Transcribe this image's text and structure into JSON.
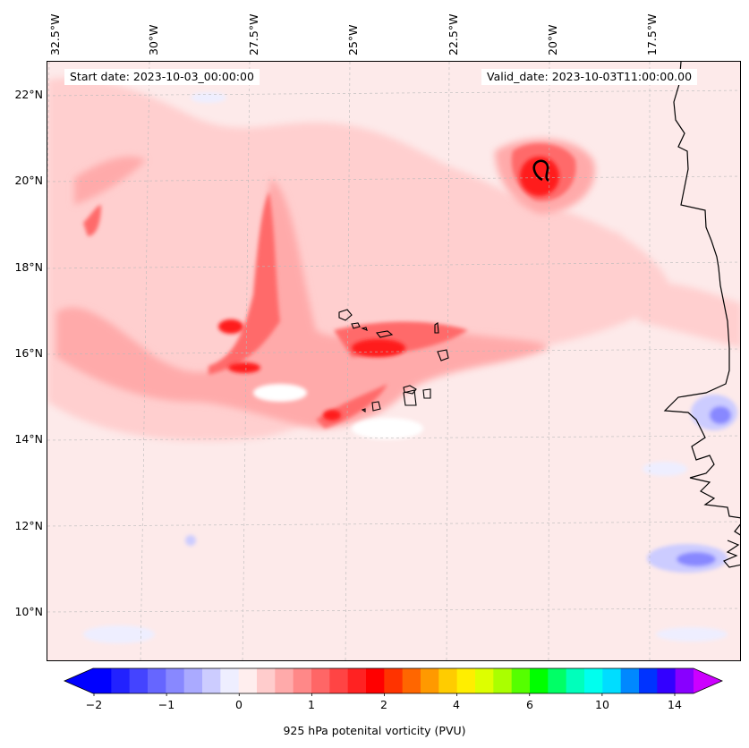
{
  "header": {
    "start_date": "Start date: 2023-10-03_00:00:00",
    "valid_date": "Valid_date: 2023-10-03T11:00:00.00"
  },
  "axes": {
    "lon_labels": [
      "32.5°W",
      "30°W",
      "27.5°W",
      "25°W",
      "22.5°W",
      "20°W",
      "17.5°W"
    ],
    "lat_labels": [
      "22°N",
      "20°N",
      "18°N",
      "16°N",
      "14°N",
      "12°N",
      "10°N"
    ],
    "gridlines": "dashed-light-gray"
  },
  "colorbar": {
    "title": "925 hPa potenital vorticity (PVU)",
    "tick_labels": [
      "−2",
      "−1",
      "0",
      "1",
      "2",
      "4",
      "6",
      "10",
      "14"
    ],
    "extend": "both",
    "colors": [
      "#0000ff",
      "#2222ff",
      "#4444ff",
      "#6666ff",
      "#8888ff",
      "#aaaaff",
      "#ccccff",
      "#eeeeff",
      "#ffeeee",
      "#ffcccc",
      "#ffaaaa",
      "#ff8888",
      "#ff6666",
      "#ff4444",
      "#ff2222",
      "#ff0000",
      "#ff3300",
      "#ff6600",
      "#ff9900",
      "#ffcc00",
      "#ffee00",
      "#ddff00",
      "#aaff00",
      "#55ff00",
      "#00ff00",
      "#00ff66",
      "#00ffbb",
      "#00ffee",
      "#00ddff",
      "#0088ff",
      "#0033ff",
      "#3300ff",
      "#8800ff"
    ],
    "under_color": "#0000ff",
    "over_color": "#cc00ff"
  },
  "map": {
    "background_color": "#fdeaea",
    "coastline_color": "#000000",
    "features": [
      "west-africa-coastline",
      "cape-verde-islands",
      "vorticity-max-near-20N-20W"
    ]
  }
}
